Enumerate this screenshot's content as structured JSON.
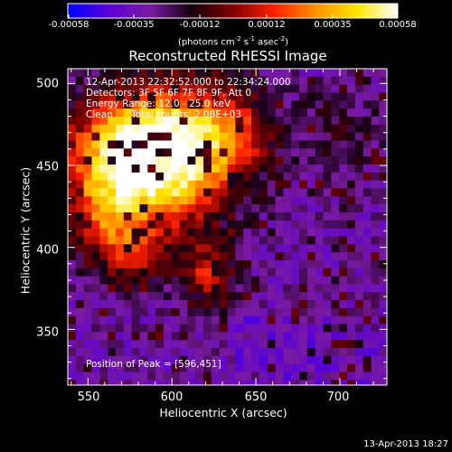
{
  "colorbar": {
    "ticks": [
      "-0.00058",
      "-0.00035",
      "-0.00012",
      "0.00012",
      "0.00035",
      "0.00058"
    ],
    "units_prefix": "(photons cm",
    "units_exp1": "-2",
    "units_mid": " s",
    "units_exp2": "-1",
    "units_mid2": " asec",
    "units_exp3": "-2",
    "units_suffix": ")",
    "colormap": [
      "#0000ff",
      "#5a00d8",
      "#7a1aa0",
      "#150010",
      "#800000",
      "#ff2000",
      "#ff9000",
      "#ffe600",
      "#ffffff"
    ]
  },
  "image": {
    "title": "Reconstructed RHESSI Image",
    "time_range": "12-Apr-2013 22:32:52.000 to 22:34:24.000",
    "detectors": "Detectors: 3F 5F 6F 7F 8F 9F, Att 0",
    "energy_range": "Energy Range: 12.0 - 25.0 keV",
    "method": "Clean",
    "total_counts": "Total counts: 2.08E+03",
    "peak_position": "Position of Peak = [596,451]"
  },
  "axes": {
    "xlabel": "Heliocentric X (arcsec)",
    "ylabel": "Heliocentric Y (arcsec)",
    "x_ticks": [
      "550",
      "600",
      "650",
      "700"
    ],
    "y_ticks": [
      "350",
      "400",
      "450",
      "500"
    ],
    "xlim": [
      538,
      728
    ],
    "ylim": [
      316,
      509
    ],
    "peak": [
      596,
      451
    ]
  },
  "footer": {
    "timestamp": "13-Apr-2013 18:27"
  }
}
